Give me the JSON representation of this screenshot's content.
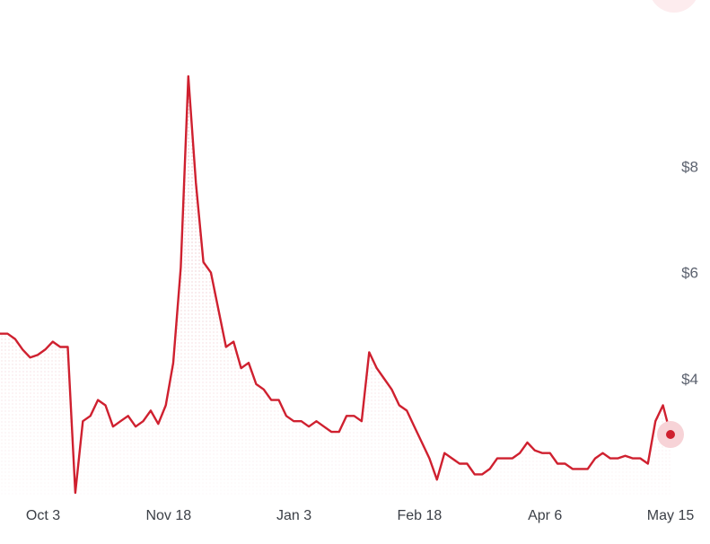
{
  "chart_data": {
    "type": "area",
    "x_start": "Sep 26",
    "x_end": "May 15",
    "xticks": [
      "Oct 3",
      "Nov 18",
      "Jan 3",
      "Feb 18",
      "Apr 6",
      "May 15"
    ],
    "yticks": [
      {
        "value": 4,
        "label": "$4"
      },
      {
        "value": 6,
        "label": "$6"
      },
      {
        "value": 8,
        "label": "$8"
      }
    ],
    "ylim": [
      1.8,
      10.8
    ],
    "grid": false,
    "legend": "none",
    "colors": {
      "line": "#cf202f",
      "fill_dots": "#eab6bc",
      "marker_halo": "#f7d3d7"
    },
    "series": [
      {
        "values": [
          4.85,
          4.85,
          4.75,
          4.55,
          4.4,
          4.45,
          4.55,
          4.7,
          4.6,
          4.6,
          1.85,
          3.2,
          3.3,
          3.6,
          3.5,
          3.1,
          3.2,
          3.3,
          3.1,
          3.2,
          3.4,
          3.15,
          3.5,
          4.3,
          6.1,
          9.7,
          7.7,
          6.2,
          6.0,
          5.3,
          4.6,
          4.7,
          4.2,
          4.3,
          3.9,
          3.8,
          3.6,
          3.6,
          3.3,
          3.2,
          3.2,
          3.1,
          3.2,
          3.1,
          3.0,
          3.0,
          3.3,
          3.3,
          3.2,
          4.5,
          4.2,
          4.0,
          3.8,
          3.5,
          3.4,
          3.1,
          2.8,
          2.5,
          2.1,
          2.6,
          2.5,
          2.4,
          2.4,
          2.2,
          2.2,
          2.3,
          2.5,
          2.5,
          2.5,
          2.6,
          2.8,
          2.65,
          2.6,
          2.6,
          2.4,
          2.4,
          2.3,
          2.3,
          2.3,
          2.5,
          2.6,
          2.5,
          2.5,
          2.55,
          2.5,
          2.5,
          2.4,
          3.2,
          3.5,
          2.95
        ]
      }
    ]
  }
}
